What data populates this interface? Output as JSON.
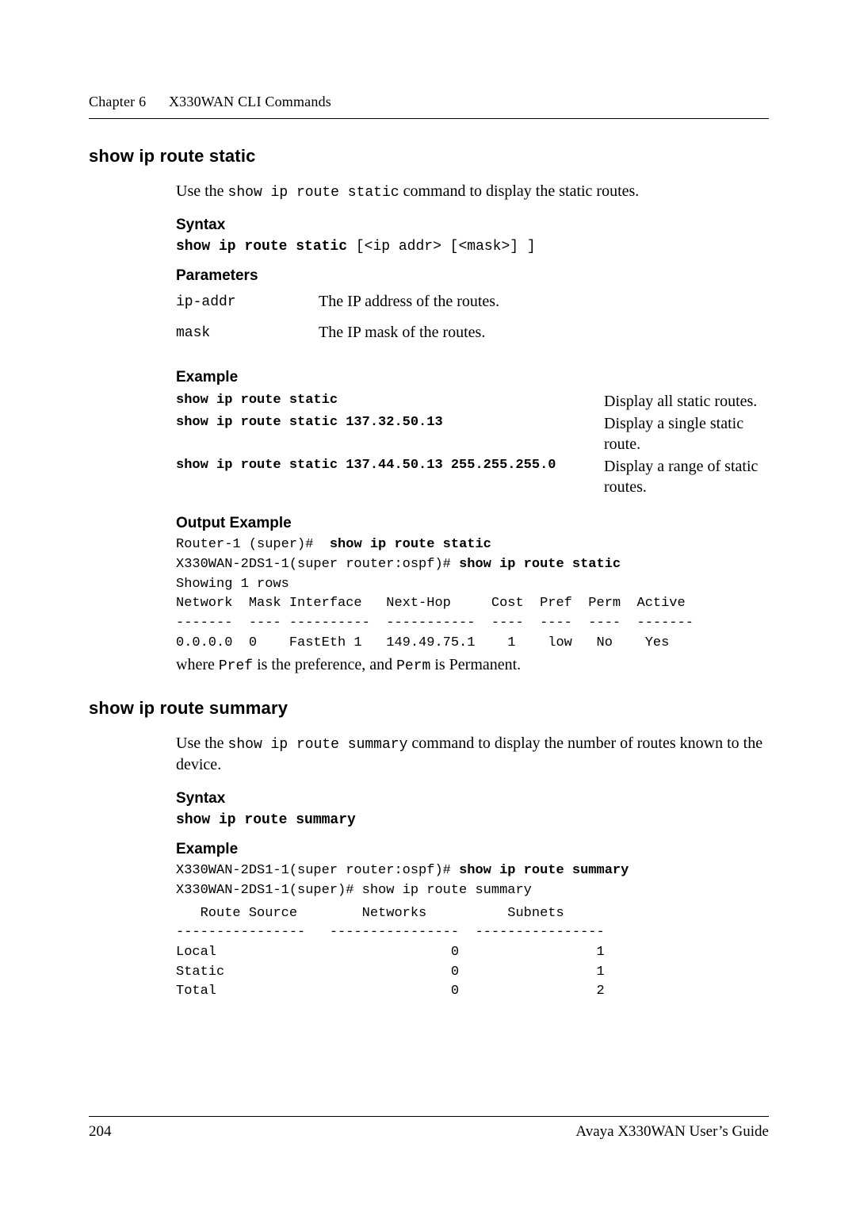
{
  "runningHead": {
    "chapter": "Chapter 6",
    "title": "X330WAN CLI Commands"
  },
  "sec1": {
    "heading": "show ip route static",
    "intro_pre": "Use the ",
    "intro_cmd": "show ip route static",
    "intro_post": " command to display the static routes.",
    "syntaxLabel": "Syntax",
    "syntax_bold": "show ip route static",
    "syntax_rest": " [<ip addr> [<mask>] ]",
    "paramsLabel": "Parameters",
    "params": [
      {
        "name": "ip-addr",
        "desc": "The IP address of the routes."
      },
      {
        "name": "mask",
        "desc": "The IP mask of the routes."
      }
    ],
    "exampleLabel": "Example",
    "examples": [
      {
        "cmd": "show ip route static",
        "desc": "Display all static routes."
      },
      {
        "cmd": "show ip route static 137.32.50.13",
        "desc": "Display a single static route."
      },
      {
        "cmd": "show ip route static 137.44.50.13 255.255.255.0",
        "desc": "Display a range of static routes."
      }
    ],
    "outExLabel": "Output Example",
    "out_line1_a": "Router-1 (super)#  ",
    "out_line1_b": "show ip route static",
    "out_line2_a": "X330WAN-2DS1-1(super router:ospf)# ",
    "out_line2_b": "show ip route static",
    "out_line3": "Showing 1 rows",
    "out_line4": "Network  Mask Interface   Next-Hop     Cost  Pref  Perm  Active",
    "out_line5": "-------  ---- ----------  -----------  ----  ----  ----  -------",
    "out_line6": "0.0.0.0  0    FastEth 1   149.49.75.1    1    low   No    Yes",
    "where_a": "where ",
    "where_b": "Pref",
    "where_c": " is the preference, and ",
    "where_d": "Perm",
    "where_e": " is Permanent."
  },
  "sec2": {
    "heading": "show ip route summary",
    "intro_pre": "Use the ",
    "intro_cmd": "show ip route summary",
    "intro_post": " command to display the number of routes known to the device.",
    "syntaxLabel": "Syntax",
    "syntax_bold": "show ip route summary",
    "exampleLabel": "Example",
    "ex_line1_a": "X330WAN-2DS1-1(super router:ospf)# ",
    "ex_line1_b": "show ip route summary",
    "ex_line2": "X330WAN-2DS1-1(super)# show ip route summary",
    "sum_head": "   Route Source        Networks          Subnets",
    "sum_rule": "----------------   ----------------  ----------------",
    "sum_r1": "Local                             0                 1",
    "sum_r2": "Static                            0                 1",
    "sum_r3": "Total                             0                 2"
  },
  "footer": {
    "pageNum": "204",
    "bookTitle": "Avaya X330WAN User’s Guide"
  }
}
